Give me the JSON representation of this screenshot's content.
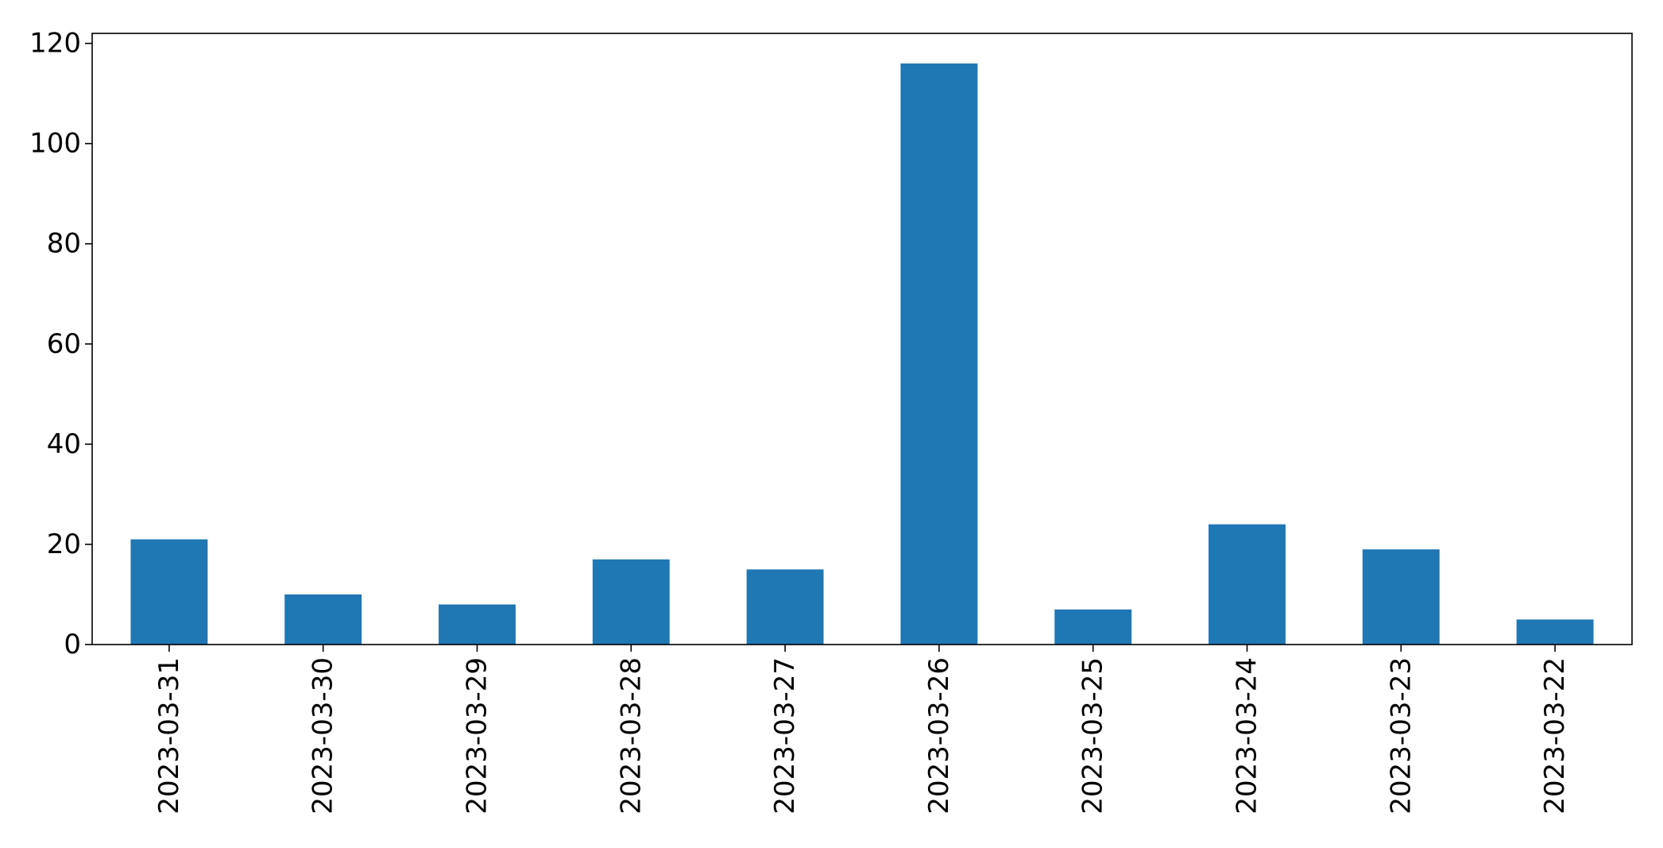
{
  "chart_data": {
    "type": "bar",
    "title": "",
    "xlabel": "",
    "ylabel": "",
    "categories": [
      "2023-03-31",
      "2023-03-30",
      "2023-03-29",
      "2023-03-28",
      "2023-03-27",
      "2023-03-26",
      "2023-03-25",
      "2023-03-24",
      "2023-03-23",
      "2023-03-22"
    ],
    "values": [
      21,
      10,
      8,
      17,
      15,
      116,
      7,
      24,
      19,
      5
    ],
    "ylim": [
      0,
      122
    ],
    "yticks": [
      0,
      20,
      40,
      60,
      80,
      100,
      120
    ],
    "grid": false,
    "legend": "none",
    "bar_color": "#1f77b4"
  }
}
